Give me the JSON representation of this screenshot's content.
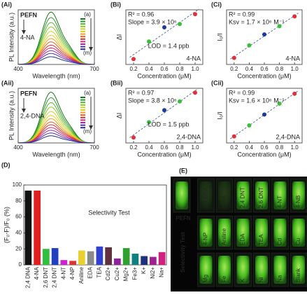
{
  "chart_data": [
    {
      "type": "spectrum",
      "panel": "(Ai)",
      "xlabel": "Wavelength (nm)",
      "ylabel": "PL Intensity (a.u.)",
      "xlim": [
        400,
        700
      ],
      "xticks": [
        400,
        700
      ],
      "ylim": [
        0,
        100
      ],
      "values": [
        95,
        85,
        76,
        68,
        60,
        53,
        47,
        41,
        35,
        30,
        25,
        20,
        14
      ],
      "colors": [
        "#1a7a1a",
        "#2e9a2e",
        "#55b52e",
        "#8cc82a",
        "#c8d42a",
        "#e8d020",
        "#f0a020",
        "#e86020",
        "#d83030",
        "#d03070",
        "#a030a0",
        "#5030b0",
        "#2030a0"
      ],
      "sample": "PEFN",
      "analyte": "4-NA",
      "first": "(a)",
      "last": "(m)"
    },
    {
      "type": "scatter",
      "panel": "(Bi)",
      "xlabel": "Concentration (μM)",
      "ylabel": "ΔI",
      "xlim": [
        0.1,
        1.1
      ],
      "xticks": [
        0.2,
        0.4,
        0.6,
        0.8,
        {
          "value": 1,
          "label": "1.0"
        }
      ],
      "ylim": [
        0,
        1
      ],
      "x": [
        0.2,
        0.4,
        0.6,
        0.8,
        1
      ],
      "values": [
        0.1,
        0.42,
        0.68,
        0.74,
        0.92
      ],
      "colors": [
        "#e0303a",
        "#39c039",
        "#1a3aa0",
        "#39c039",
        "#e0303a"
      ],
      "text_color": "#1a5a8a",
      "stats": [
        "R² = 0.96",
        "Slope = 3.9 × 10⁶"
      ],
      "lod": "LOD = 1.4 ppb",
      "analyte": "4-NA"
    },
    {
      "type": "scatter",
      "panel": "(Ci)",
      "xlabel": "Concentration (μM)",
      "ylabel": "I₀/I",
      "xlim": [
        0.1,
        1.1
      ],
      "xticks": [
        0.2,
        0.4,
        0.6,
        0.8,
        {
          "value": 1,
          "label": "1.0"
        }
      ],
      "ylim": [
        0,
        1
      ],
      "x": [
        0.2,
        0.4,
        0.6,
        0.8,
        1
      ],
      "values": [
        0.12,
        0.35,
        0.55,
        0.7,
        0.88
      ],
      "colors": [
        "#e0303a",
        "#39c039",
        "#1a3aa0",
        "#39c039",
        "#e0303a"
      ],
      "text_color": "#1a5a8a",
      "stats": [
        "R² = 0.99",
        "Ksv = 1.7 × 10⁶ M⁻¹"
      ],
      "analyte": "4-NA"
    },
    {
      "type": "spectrum",
      "panel": "(Aii)",
      "xlabel": "Wavelength (nm)",
      "ylabel": "PL Intensity (a.u.)",
      "xlim": [
        400,
        700
      ],
      "xticks": [
        400,
        700
      ],
      "ylim": [
        0,
        100
      ],
      "values": [
        92,
        82,
        73,
        65,
        57,
        50,
        44,
        38,
        33,
        28,
        23,
        18,
        13
      ],
      "colors": [
        "#1a7a1a",
        "#2e9a2e",
        "#55b52e",
        "#8cc82a",
        "#c8d42a",
        "#e8d020",
        "#f0a020",
        "#e86020",
        "#d83030",
        "#d03070",
        "#a030a0",
        "#5030b0",
        "#2030a0"
      ],
      "sample": "PEFN",
      "analyte": "2,4-DNA",
      "first": "(a)",
      "last": "(m)"
    },
    {
      "type": "scatter",
      "panel": "(Bii)",
      "xlabel": "Concentration (μM)",
      "ylabel": "ΔI",
      "xlim": [
        0.1,
        1.1
      ],
      "xticks": [
        0.2,
        0.4,
        0.6,
        0.8,
        {
          "value": 1,
          "label": "1.0"
        }
      ],
      "ylim": [
        0,
        1
      ],
      "x": [
        0.2,
        0.4,
        0.6,
        0.8,
        1
      ],
      "values": [
        0.1,
        0.38,
        0.6,
        0.76,
        0.92
      ],
      "colors": [
        "#e0303a",
        "#39c039",
        "#1a3aa0",
        "#39c039",
        "#e0303a"
      ],
      "text_color": "#8a2a1a",
      "stats": [
        "R² = 0.97",
        "Slope = 3.8 × 10⁶"
      ],
      "lod": "LOD = 1.5 ppb",
      "analyte": "2,4-DNA"
    },
    {
      "type": "scatter",
      "panel": "(Cii)",
      "xlabel": "Concentration (μM)",
      "ylabel": "I₀/I",
      "xlim": [
        0.1,
        1.1
      ],
      "xticks": [
        0.2,
        0.4,
        0.6,
        0.8,
        {
          "value": 1,
          "label": "1.0"
        }
      ],
      "ylim": [
        0,
        1
      ],
      "x": [
        0.2,
        0.4,
        0.6,
        0.8,
        1
      ],
      "values": [
        0.12,
        0.32,
        0.52,
        0.72,
        0.9
      ],
      "colors": [
        "#e0303a",
        "#39c039",
        "#1a3aa0",
        "#39c039",
        "#e0303a"
      ],
      "text_color": "#8a2a1a",
      "stats": [
        "R² = 0.99",
        "Ksv = 1.6 × 10⁶ M⁻¹"
      ],
      "analyte": "2,4-DNA"
    },
    {
      "type": "bar",
      "panel": "(D)",
      "title": "Selectivity Test",
      "ylabel": "(F₀-F)/F₀ (%)",
      "ylim": [
        0,
        100
      ],
      "yticks": [
        0,
        20,
        40,
        60,
        80,
        100
      ],
      "categories": [
        "2,4 DNA",
        "4-NA",
        "2,6 DNT",
        "2,4 DNT",
        "4-NT",
        "4-NP",
        "Aniline",
        "EDA",
        "TEA",
        "Cd2+",
        "Cu2+",
        "Mg2+",
        "Fe3+",
        "K+",
        "Ni2+",
        "Na+"
      ],
      "values": [
        93,
        93,
        20,
        21,
        6,
        5,
        18,
        17,
        23,
        22,
        8,
        21,
        14,
        11,
        10,
        16
      ],
      "colors": [
        "#111111",
        "#e02020",
        "#30c040",
        "#2040c0",
        "#d020d0",
        "#e03030",
        "#e8d030",
        "#8a8a8a",
        "#3040d0",
        "#603040",
        "#9020a0",
        "#30a030",
        "#108080",
        "#203080",
        "#a02090",
        "#d02080"
      ]
    }
  ],
  "photo_panel": {
    "panel": "(E)",
    "sample": "PEFN",
    "caption": "Selectivity Test",
    "rows": [
      [
        "",
        "2,4 DNA",
        "4-NA",
        "2,4 DNT",
        "2,6 DNT",
        "4-NT",
        "4-NB"
      ],
      [
        "4-NP",
        "Aniline",
        "EDA",
        "TEA",
        "Cd",
        "Cu"
      ],
      [
        "Mg",
        "Fe",
        "K",
        "Ni",
        "Na",
        "Blank"
      ]
    ]
  }
}
